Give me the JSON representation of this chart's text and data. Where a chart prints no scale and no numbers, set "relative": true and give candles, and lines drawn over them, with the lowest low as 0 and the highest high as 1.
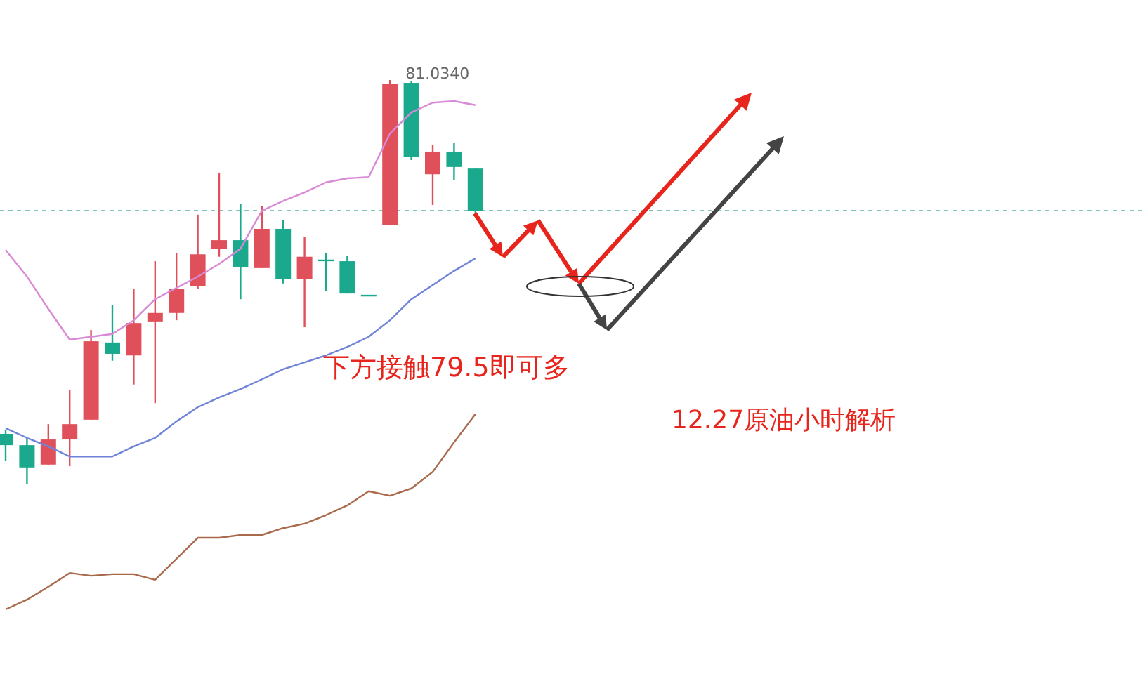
{
  "chart_data": {
    "type": "candlestick",
    "relative": true,
    "categories": [
      null,
      null,
      null,
      null,
      null,
      null,
      null,
      null,
      null,
      null,
      null,
      null,
      null,
      null,
      null,
      null,
      null,
      null,
      null,
      null,
      null,
      null,
      null
    ],
    "ohlc": [
      [
        0.125,
        0.135,
        0.059,
        0.097
      ],
      [
        0.097,
        0.118,
        0,
        0.042
      ],
      [
        0.049,
        0.149,
        0.049,
        0.111
      ],
      [
        0.111,
        0.233,
        0.045,
        0.149
      ],
      [
        0.16,
        0.382,
        0.16,
        0.354
      ],
      [
        0.351,
        0.444,
        0.306,
        0.323
      ],
      [
        0.319,
        0.483,
        0.247,
        0.399
      ],
      [
        0.403,
        0.552,
        0.201,
        0.424
      ],
      [
        0.424,
        0.573,
        0.406,
        0.483
      ],
      [
        0.49,
        0.667,
        0.483,
        0.569
      ],
      [
        0.583,
        0.771,
        0.563,
        0.604
      ],
      [
        0.604,
        0.694,
        0.458,
        0.538
      ],
      [
        0.535,
        0.688,
        0.535,
        0.632
      ],
      [
        0.632,
        0.653,
        0.497,
        0.507
      ],
      [
        0.507,
        0.611,
        0.389,
        0.563
      ],
      [
        0.556,
        0.573,
        0.479,
        0.556
      ],
      [
        0.552,
        0.566,
        0.472,
        0.472
      ],
      [
        0.469,
        0.469,
        0.469,
        0.469
      ],
      [
        0.642,
        1,
        0.642,
        0.99
      ],
      [
        0.993,
        0.997,
        0.802,
        0.809
      ],
      [
        0.767,
        0.84,
        0.691,
        0.823
      ],
      [
        0.823,
        0.844,
        0.753,
        0.785
      ],
      [
        0.781,
        0.781,
        0.67,
        0.677
      ]
    ],
    "colors": [
      "#1aa98c",
      "#1aa98c",
      "#e0505a",
      "#e0505a",
      "#e0505a",
      "#1aa98c",
      "#e0505a",
      "#e0505a",
      "#e0505a",
      "#e0505a",
      "#e0505a",
      "#1aa98c",
      "#e0505a",
      "#1aa98c",
      "#e0505a",
      "#1aa98c",
      "#1aa98c",
      "#1aa98c",
      "#e0505a",
      "#1aa98c",
      "#e0505a",
      "#1aa98c",
      "#1aa98c"
    ],
    "series": [
      {
        "type": "line",
        "color": "#d98ad6",
        "values": [
          0.58,
          0.514,
          0.434,
          0.358,
          0.365,
          0.372,
          0.406,
          0.458,
          0.486,
          0.514,
          0.545,
          0.583,
          0.677,
          0.701,
          0.722,
          0.747,
          0.757,
          0.76,
          0.868,
          0.92,
          0.944,
          0.948,
          0.938
        ]
      },
      {
        "type": "line",
        "color": "#6f84d8",
        "values": [
          0.139,
          0.115,
          0.094,
          0.069,
          0.069,
          0.069,
          0.094,
          0.115,
          0.156,
          0.191,
          0.215,
          0.236,
          0.26,
          0.285,
          0.302,
          0.319,
          0.34,
          0.365,
          0.406,
          0.458,
          0.493,
          0.528,
          0.559
        ]
      },
      {
        "type": "line",
        "color": "#a86a4a",
        "values": [
          -0.309,
          -0.285,
          -0.253,
          -0.219,
          -0.226,
          -0.222,
          -0.222,
          -0.236,
          -0.184,
          -0.132,
          -0.132,
          -0.125,
          -0.125,
          -0.108,
          -0.097,
          -0.076,
          -0.052,
          -0.017,
          -0.028,
          -0.01,
          0.031,
          0.104,
          0.174
        ]
      }
    ],
    "ref_lines": [
      {
        "axis": "y",
        "value": 0.677,
        "color": "#7fc4c0",
        "line_style": "dashed"
      }
    ],
    "annotations": [
      "81.0340",
      "下方接触79.5即可多",
      "12.27原油小时解析"
    ]
  }
}
